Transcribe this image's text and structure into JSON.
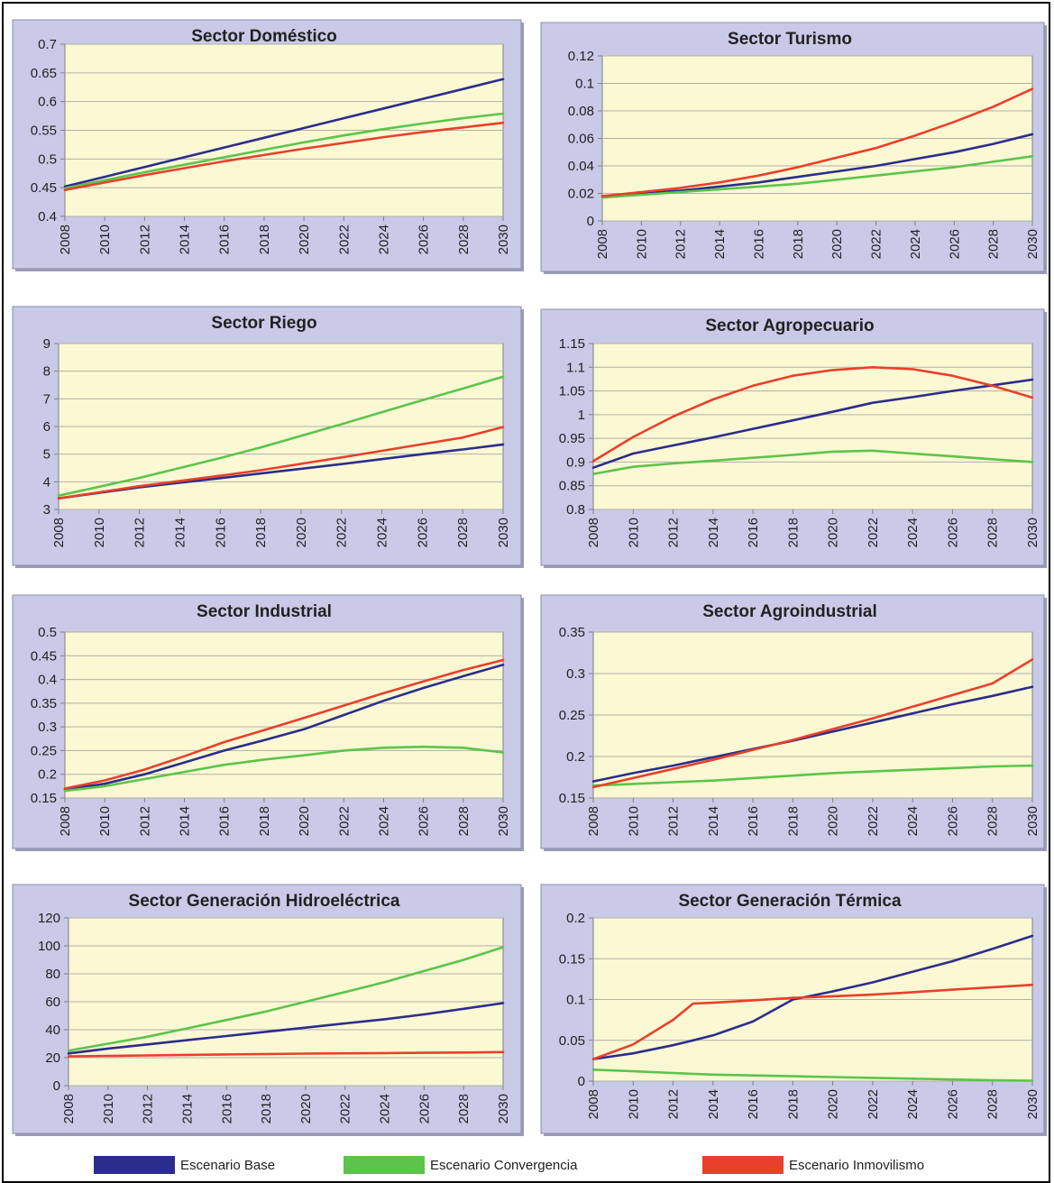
{
  "colors": {
    "panel_bg": "#c8cae8",
    "plot_bg": "#fbf8d4",
    "grid": "#b0b0a8",
    "axis": "#808080",
    "text": "#222222"
  },
  "legend": [
    {
      "label": "Escenario Base",
      "color": "#2b2d8c"
    },
    {
      "label": "Escenario Convergencia",
      "color": "#5cc44a"
    },
    {
      "label": "Escenario Inmovilismo",
      "color": "#e8402a"
    }
  ],
  "chart_data": [
    {
      "type": "line",
      "title": "Sector Doméstico",
      "x": [
        2008,
        2010,
        2012,
        2014,
        2016,
        2018,
        2020,
        2022,
        2024,
        2026,
        2028,
        2030
      ],
      "ylim": [
        0.4,
        0.7
      ],
      "yticks": [
        "0.4",
        "0.45",
        "0.5",
        "0.55",
        "0.6",
        "0.65",
        "0.7"
      ],
      "series": [
        {
          "name": "Escenario Base",
          "values": [
            0.452,
            0.469,
            0.486,
            0.503,
            0.52,
            0.537,
            0.554,
            0.571,
            0.588,
            0.605,
            0.622,
            0.639
          ]
        },
        {
          "name": "Escenario Convergencia",
          "values": [
            0.449,
            0.463,
            0.477,
            0.49,
            0.503,
            0.516,
            0.529,
            0.541,
            0.552,
            0.562,
            0.571,
            0.579
          ]
        },
        {
          "name": "Escenario Inmovilismo",
          "values": [
            0.446,
            0.459,
            0.472,
            0.484,
            0.496,
            0.507,
            0.518,
            0.528,
            0.538,
            0.547,
            0.555,
            0.563
          ]
        }
      ]
    },
    {
      "type": "line",
      "title": "Sector Turismo",
      "x": [
        2008,
        2010,
        2012,
        2014,
        2016,
        2018,
        2020,
        2022,
        2024,
        2026,
        2028,
        2030
      ],
      "ylim": [
        0,
        0.12
      ],
      "yticks": [
        "0",
        "0.02",
        "0.04",
        "0.06",
        "0.08",
        "0.1",
        "0.12"
      ],
      "series": [
        {
          "name": "Escenario Base",
          "values": [
            0.018,
            0.02,
            0.022,
            0.025,
            0.028,
            0.032,
            0.036,
            0.04,
            0.045,
            0.05,
            0.056,
            0.063
          ]
        },
        {
          "name": "Escenario Convergencia",
          "values": [
            0.017,
            0.019,
            0.021,
            0.023,
            0.025,
            0.027,
            0.03,
            0.033,
            0.036,
            0.039,
            0.043,
            0.047
          ]
        },
        {
          "name": "Escenario Inmovilismo",
          "values": [
            0.018,
            0.021,
            0.024,
            0.028,
            0.033,
            0.039,
            0.046,
            0.053,
            0.062,
            0.072,
            0.083,
            0.096
          ]
        }
      ]
    },
    {
      "type": "line",
      "title": "Sector Riego",
      "x": [
        2008,
        2010,
        2012,
        2014,
        2016,
        2018,
        2020,
        2022,
        2024,
        2026,
        2028,
        2030
      ],
      "ylim": [
        3,
        9
      ],
      "yticks": [
        "3",
        "4",
        "5",
        "6",
        "7",
        "8",
        "9"
      ],
      "series": [
        {
          "name": "Escenario Base",
          "values": [
            3.4,
            3.6,
            3.8,
            3.97,
            4.13,
            4.3,
            4.47,
            4.64,
            4.82,
            5.0,
            5.17,
            5.35
          ]
        },
        {
          "name": "Escenario Convergencia",
          "values": [
            3.5,
            3.82,
            4.14,
            4.5,
            4.86,
            5.24,
            5.66,
            6.08,
            6.52,
            6.95,
            7.37,
            7.8
          ]
        },
        {
          "name": "Escenario Inmovilismo",
          "values": [
            3.4,
            3.62,
            3.84,
            4.03,
            4.22,
            4.42,
            4.65,
            4.88,
            5.12,
            5.36,
            5.6,
            5.98
          ]
        }
      ]
    },
    {
      "type": "line",
      "title": "Sector Agropecuario",
      "x": [
        2008,
        2010,
        2012,
        2014,
        2016,
        2018,
        2020,
        2022,
        2024,
        2026,
        2028,
        2030
      ],
      "ylim": [
        0.8,
        1.15
      ],
      "yticks": [
        "0.8",
        "0.85",
        "0.9",
        "0.95",
        "1",
        "1.05",
        "1.1",
        "1.15"
      ],
      "series": [
        {
          "name": "Escenario Base",
          "values": [
            0.888,
            0.918,
            0.935,
            0.952,
            0.97,
            0.988,
            1.006,
            1.025,
            1.037,
            1.05,
            1.062,
            1.074
          ]
        },
        {
          "name": "Escenario Convergencia",
          "values": [
            0.875,
            0.89,
            0.897,
            0.903,
            0.909,
            0.915,
            0.922,
            0.924,
            0.918,
            0.912,
            0.906,
            0.9
          ]
        },
        {
          "name": "Escenario Inmovilismo",
          "values": [
            0.902,
            0.953,
            0.996,
            1.032,
            1.061,
            1.082,
            1.094,
            1.1,
            1.096,
            1.082,
            1.061,
            1.036
          ]
        }
      ]
    },
    {
      "type": "line",
      "title": "Sector Industrial",
      "x": [
        2008,
        2010,
        2012,
        2014,
        2016,
        2018,
        2020,
        2022,
        2024,
        2026,
        2028,
        2030
      ],
      "ylim": [
        0.15,
        0.5
      ],
      "yticks": [
        "0.15",
        "0.2",
        "0.25",
        "0.3",
        "0.35",
        "0.4",
        "0.45",
        "0.5"
      ],
      "series": [
        {
          "name": "Escenario Base",
          "values": [
            0.168,
            0.18,
            0.2,
            0.225,
            0.25,
            0.272,
            0.295,
            0.325,
            0.355,
            0.382,
            0.407,
            0.431
          ]
        },
        {
          "name": "Escenario Convergencia",
          "values": [
            0.165,
            0.175,
            0.19,
            0.205,
            0.22,
            0.231,
            0.24,
            0.25,
            0.256,
            0.258,
            0.256,
            0.246
          ]
        },
        {
          "name": "Escenario Inmovilismo",
          "values": [
            0.17,
            0.187,
            0.21,
            0.238,
            0.268,
            0.293,
            0.319,
            0.345,
            0.371,
            0.396,
            0.42,
            0.441
          ]
        }
      ]
    },
    {
      "type": "line",
      "title": "Sector Agroindustrial",
      "x": [
        2008,
        2010,
        2012,
        2014,
        2016,
        2018,
        2020,
        2022,
        2024,
        2026,
        2028,
        2030
      ],
      "ylim": [
        0.15,
        0.35
      ],
      "yticks": [
        "0.15",
        "0.2",
        "0.25",
        "0.3",
        "0.35"
      ],
      "series": [
        {
          "name": "Escenario Base",
          "values": [
            0.17,
            0.18,
            0.189,
            0.199,
            0.209,
            0.219,
            0.23,
            0.241,
            0.252,
            0.263,
            0.273,
            0.284
          ]
        },
        {
          "name": "Escenario Convergencia",
          "values": [
            0.165,
            0.167,
            0.169,
            0.171,
            0.174,
            0.177,
            0.18,
            0.182,
            0.184,
            0.186,
            0.188,
            0.189
          ]
        },
        {
          "name": "Escenario Inmovilismo",
          "values": [
            0.163,
            0.174,
            0.185,
            0.196,
            0.208,
            0.22,
            0.233,
            0.246,
            0.26,
            0.274,
            0.288,
            0.317
          ]
        }
      ]
    },
    {
      "type": "line",
      "title": "Sector Generación Hidroeléctrica",
      "x": [
        2008,
        2010,
        2012,
        2014,
        2016,
        2018,
        2020,
        2022,
        2024,
        2026,
        2028,
        2030
      ],
      "ylim": [
        0,
        120
      ],
      "yticks": [
        "0",
        "20",
        "40",
        "60",
        "80",
        "100",
        "120"
      ],
      "series": [
        {
          "name": "Escenario Base",
          "values": [
            23,
            26.5,
            29.5,
            32.5,
            35.5,
            38.5,
            41.5,
            44.5,
            47.5,
            51,
            55,
            59
          ]
        },
        {
          "name": "Escenario Convergencia",
          "values": [
            25,
            30,
            35,
            41,
            47,
            53,
            60,
            67,
            74,
            82,
            90,
            99
          ]
        },
        {
          "name": "Escenario Inmovilismo",
          "values": [
            21,
            21.3,
            21.6,
            22,
            22.3,
            22.6,
            22.9,
            23.1,
            23.3,
            23.5,
            23.7,
            24
          ]
        }
      ]
    },
    {
      "type": "line",
      "title": "Sector Generación Térmica",
      "x": [
        2008,
        2010,
        2012,
        2013,
        2014,
        2016,
        2018,
        2020,
        2022,
        2024,
        2026,
        2028,
        2030
      ],
      "ylim": [
        0,
        0.2
      ],
      "yticks": [
        "0",
        "0.05",
        "0.1",
        "0.15",
        "0.2"
      ],
      "series": [
        {
          "name": "Escenario Base",
          "values": [
            0.027,
            0.034,
            0.044,
            0.05,
            0.056,
            0.073,
            0.1,
            0.11,
            0.121,
            0.134,
            0.147,
            0.162,
            0.178
          ]
        },
        {
          "name": "Escenario Convergencia",
          "values": [
            0.014,
            0.012,
            0.01,
            0.009,
            0.008,
            0.007,
            0.006,
            0.005,
            0.004,
            0.003,
            0.002,
            0.001,
            0.0005
          ]
        },
        {
          "name": "Escenario Inmovilismo",
          "values": [
            0.027,
            0.045,
            0.075,
            0.095,
            0.096,
            0.099,
            0.102,
            0.104,
            0.106,
            0.109,
            0.112,
            0.115,
            0.118
          ]
        }
      ]
    }
  ]
}
